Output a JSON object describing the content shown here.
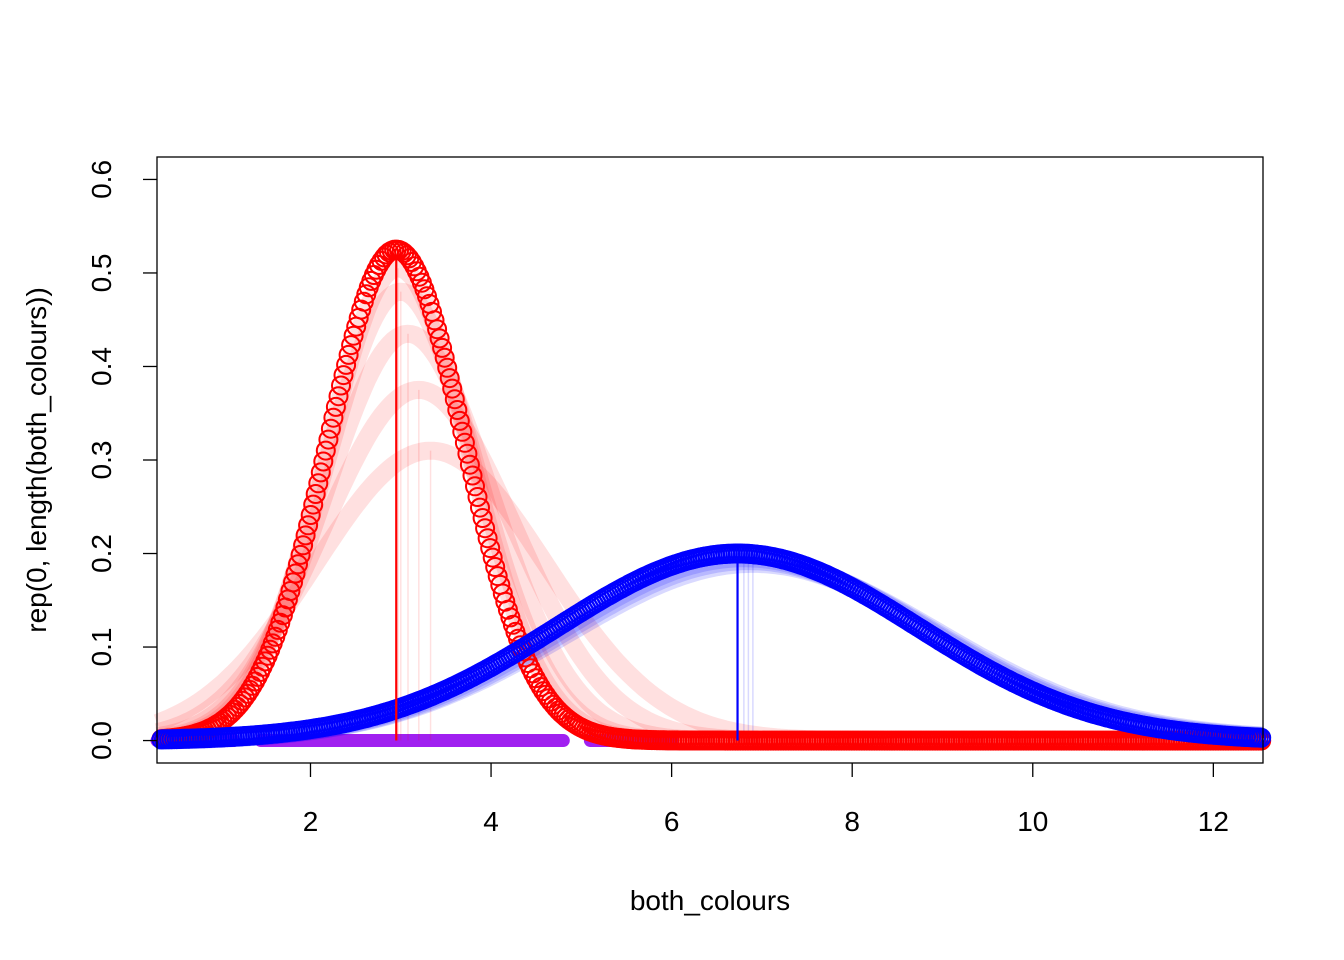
{
  "chart_data": {
    "type": "scatter",
    "title": "",
    "xlabel": "both_colours",
    "ylabel": "rep(0, length(both_colours))",
    "xlim": [
      0.3,
      12.55
    ],
    "ylim": [
      -0.024,
      0.624
    ],
    "x_ticks": [
      2,
      4,
      6,
      8,
      10,
      12
    ],
    "y_ticks": [
      0.0,
      0.1,
      0.2,
      0.3,
      0.4,
      0.5,
      0.6
    ],
    "y_tick_labels": [
      "0.0",
      "0.1",
      "0.2",
      "0.3",
      "0.4",
      "0.5",
      "0.6"
    ],
    "grid": false,
    "legend": "none",
    "rug": {
      "color": "#a020f0",
      "y": 0,
      "segments": [
        [
          0.3,
          1.15
        ],
        [
          1.45,
          4.8
        ],
        [
          5.1,
          6.0
        ]
      ]
    },
    "red_group": {
      "color": "#ff0000",
      "final": {
        "mean": 2.95,
        "sd": 0.76,
        "peak": 0.525
      },
      "history": [
        {
          "mean": 3.33,
          "sd": 1.28,
          "peak": 0.31
        },
        {
          "mean": 3.2,
          "sd": 1.06,
          "peak": 0.375
        },
        {
          "mean": 3.08,
          "sd": 0.92,
          "peak": 0.435
        },
        {
          "mean": 3.0,
          "sd": 0.84,
          "peak": 0.48
        },
        {
          "mean": 2.97,
          "sd": 0.8,
          "peak": 0.505
        }
      ]
    },
    "blue_group": {
      "color": "#0000ff",
      "final": {
        "mean": 6.73,
        "sd": 2.0,
        "peak": 0.2
      },
      "history": [
        {
          "mean": 6.9,
          "sd": 2.05,
          "peak": 0.19
        },
        {
          "mean": 6.85,
          "sd": 2.03,
          "peak": 0.193
        },
        {
          "mean": 6.8,
          "sd": 2.02,
          "peak": 0.196
        }
      ]
    }
  }
}
